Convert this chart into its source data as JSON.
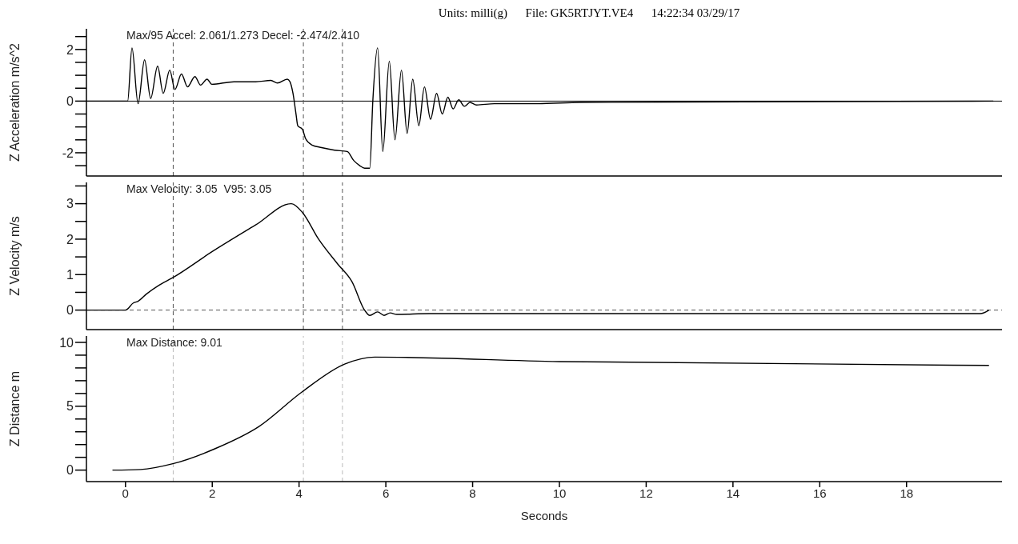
{
  "chart_data": [
    {
      "type": "line",
      "title": "Units: milli(g)      File: GK5RTJYT.VE4      14:22:34 03/29/17",
      "ylabel": "Z Acceleration m/s^2",
      "annotations": [
        "Max/95 Accel: 2.061/1.273 Decel: -2.474/2.410"
      ],
      "tick_labels": "y",
      "xlim": [
        -0.9,
        20.2
      ],
      "ylim": [
        -2.9,
        2.8
      ],
      "yticks": [
        {
          "value": -2.5,
          "label": null
        },
        -2,
        {
          "value": -1.5,
          "label": null
        },
        {
          "value": -1,
          "label": null
        },
        {
          "value": -0.5,
          "label": null
        },
        0,
        {
          "value": 0.5,
          "label": null
        },
        {
          "value": 1,
          "label": null
        },
        {
          "value": 1.5,
          "label": null
        },
        2,
        {
          "value": 2.5,
          "label": null
        }
      ],
      "grid": false,
      "legend": false,
      "marker": "none",
      "line_style": "solid",
      "ref_lines": [
        {
          "axis": "y",
          "value": 0,
          "color": "#000000",
          "line_style": "solid"
        },
        {
          "axis": "x",
          "value": 1.1,
          "color": "#555555",
          "line_style": "dashed"
        },
        {
          "axis": "x",
          "value": 4.1,
          "color": "#555555",
          "line_style": "dashed"
        },
        {
          "axis": "x",
          "value": 5.0,
          "color": "#555555",
          "line_style": "dashed"
        }
      ],
      "x": [
        -0.9,
        0.05,
        0.15,
        0.29,
        0.44,
        0.58,
        0.74,
        0.87,
        1.02,
        1.14,
        1.29,
        1.43,
        1.6,
        1.73,
        1.88,
        1.99,
        2.5,
        3.0,
        3.35,
        3.5,
        3.73,
        3.79,
        3.86,
        3.93,
        3.97,
        4.08,
        4.15,
        4.3,
        4.52,
        4.82,
        5.11,
        5.26,
        5.4,
        5.51,
        5.63,
        5.7,
        5.81,
        5.93,
        6.08,
        6.21,
        6.36,
        6.49,
        6.62,
        6.76,
        6.89,
        7.03,
        7.17,
        7.3,
        7.43,
        7.55,
        7.68,
        7.81,
        7.94,
        8.09,
        8.5,
        9.5,
        10.5,
        20.0
      ],
      "series": [
        {
          "color": "#000000",
          "values": [
            0,
            0,
            2.06,
            -0.1,
            1.6,
            0.1,
            1.35,
            0.3,
            1.2,
            0.45,
            1.05,
            0.55,
            0.95,
            0.62,
            0.85,
            0.65,
            0.75,
            0.75,
            0.8,
            0.7,
            0.85,
            0.75,
            0.3,
            -0.5,
            -0.95,
            -1.1,
            -1.45,
            -1.7,
            -1.8,
            -1.9,
            -1.95,
            -2.3,
            -2.5,
            -2.6,
            -2.6,
            0,
            2.06,
            -1.95,
            1.55,
            -1.5,
            1.2,
            -1.25,
            0.85,
            -0.95,
            0.55,
            -0.7,
            0.3,
            -0.5,
            0.15,
            -0.3,
            0.05,
            -0.2,
            -0.05,
            -0.15,
            -0.1,
            -0.1,
            -0.05,
            0
          ]
        }
      ]
    },
    {
      "type": "line",
      "ylabel": "Z Velocity m/s",
      "annotations": [
        "Max Velocity: 3.05  V95: 3.05"
      ],
      "tick_labels": "y",
      "xlim": [
        -0.9,
        20.2
      ],
      "ylim": [
        -0.55,
        3.6
      ],
      "yticks": [
        0,
        {
          "value": 0.5,
          "label": null
        },
        1,
        {
          "value": 1.5,
          "label": null
        },
        2,
        {
          "value": 2.5,
          "label": null
        },
        3,
        {
          "value": 3.5,
          "label": null
        }
      ],
      "grid": false,
      "legend": false,
      "marker": "none",
      "line_style": "solid",
      "ref_lines": [
        {
          "axis": "y",
          "value": 0,
          "color": "#555555",
          "line_style": "dashed"
        },
        {
          "axis": "x",
          "value": 1.1,
          "color": "#555555",
          "line_style": "dashed"
        },
        {
          "axis": "x",
          "value": 4.1,
          "color": "#555555",
          "line_style": "dashed"
        },
        {
          "axis": "x",
          "value": 5.0,
          "color": "#555555",
          "line_style": "dashed"
        }
      ],
      "x": [
        -0.9,
        0.0,
        0.18,
        0.29,
        0.48,
        0.77,
        1.07,
        2.0,
        3.0,
        3.82,
        4.08,
        4.45,
        4.89,
        5.22,
        5.51,
        5.63,
        5.81,
        5.96,
        6.1,
        6.25,
        7.0,
        10.0,
        15.0,
        19.7,
        19.9
      ],
      "series": [
        {
          "color": "#000000",
          "values": [
            0,
            0,
            0.2,
            0.25,
            0.45,
            0.7,
            0.9,
            1.65,
            2.4,
            3.0,
            2.75,
            2.0,
            1.3,
            0.8,
            0,
            -0.15,
            -0.05,
            -0.15,
            -0.08,
            -0.12,
            -0.1,
            -0.1,
            -0.1,
            -0.1,
            0
          ]
        }
      ]
    },
    {
      "type": "line",
      "ylabel": "Z Distance  m",
      "xlabel": "Seconds",
      "annotations": [
        "Max Distance: 9.01"
      ],
      "xlim": [
        -0.9,
        20.2
      ],
      "xticks": [
        0,
        2,
        4,
        6,
        8,
        10,
        12,
        14,
        16,
        18
      ],
      "ylim": [
        -0.9,
        10.5
      ],
      "yticks": [
        0,
        {
          "value": 1,
          "label": null
        },
        {
          "value": 2,
          "label": null
        },
        {
          "value": 3,
          "label": null
        },
        {
          "value": 4,
          "label": null
        },
        5,
        {
          "value": 6,
          "label": null
        },
        {
          "value": 7,
          "label": null
        },
        {
          "value": 8,
          "label": null
        },
        {
          "value": 9,
          "label": null
        },
        10
      ],
      "grid": false,
      "legend": false,
      "marker": "none",
      "line_style": "solid",
      "ref_lines": [
        {
          "axis": "x",
          "value": 1.1,
          "color": "#bbbbbb",
          "line_style": "dashed"
        },
        {
          "axis": "x",
          "value": 4.1,
          "color": "#bbbbbb",
          "line_style": "dashed"
        },
        {
          "axis": "x",
          "value": 5.0,
          "color": "#bbbbbb",
          "line_style": "dashed"
        }
      ],
      "x": [
        -0.3,
        0.35,
        1.09,
        2.08,
        3.07,
        4.06,
        5.05,
        5.75,
        10.0,
        19.9
      ],
      "series": [
        {
          "color": "#000000",
          "values": [
            0,
            0.05,
            0.5,
            1.7,
            3.4,
            6.1,
            8.3,
            8.85,
            8.5,
            8.2
          ]
        }
      ]
    }
  ]
}
